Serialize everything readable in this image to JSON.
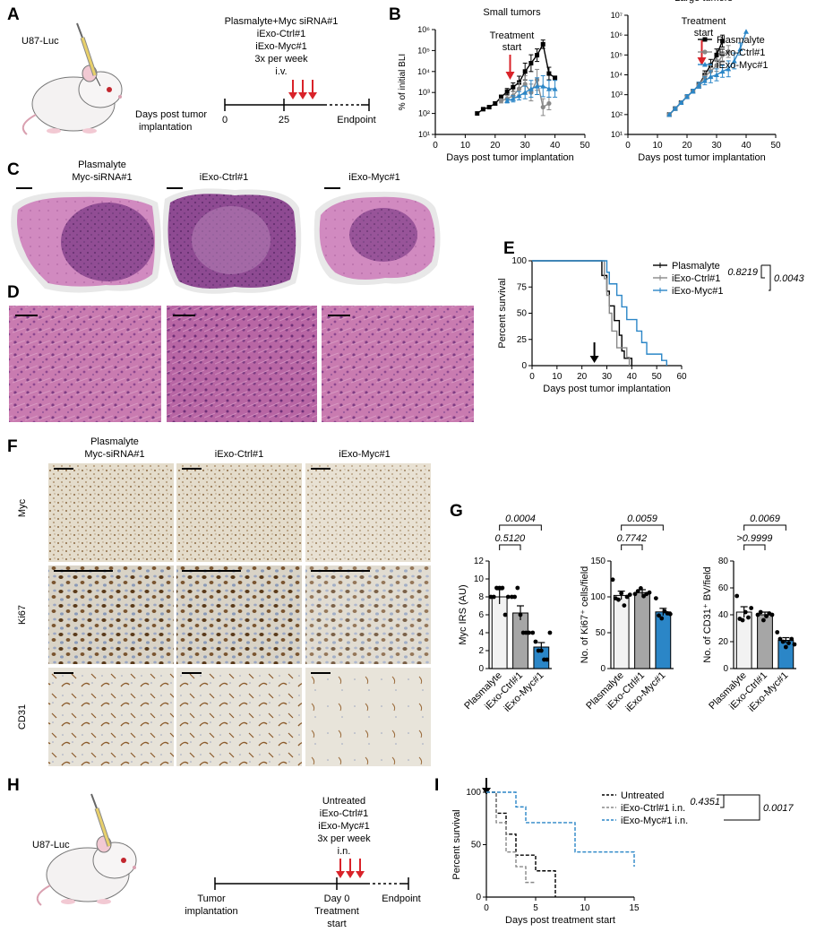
{
  "colors": {
    "plasmalyte": "#000000",
    "ctrl": "#888888",
    "myc": "#2b86c7",
    "arrow_red": "#d9232a",
    "he_pink": "#c46aa6",
    "he_purple": "#8a3f87",
    "ihc_bg": "#e9e4d8",
    "ihc_brown": "#6e4a22",
    "bar_plasmalyte": "#f2f2f2",
    "bar_ctrl": "#a6a6a6",
    "bar_myc": "#2b86c7"
  },
  "panels": {
    "A": {
      "letter": "A",
      "cell_line": "U87-Luc",
      "treatment_lines": [
        "Plasmalyte+Myc siRNA#1",
        "iExo-Ctrl#1",
        "iExo-Myc#1",
        "3x per week",
        "i.v."
      ],
      "timeline_label_1": "Days post tumor",
      "timeline_label_2": "implantation",
      "ticks": [
        "0",
        "25",
        "Endpoint"
      ]
    },
    "B": {
      "letter": "B"
    },
    "C": {
      "letter": "C",
      "group_titles": [
        [
          "Plasmalyte",
          "Myc-siRNA#1"
        ],
        [
          "iExo-Ctrl#1"
        ],
        [
          "iExo-Myc#1"
        ]
      ]
    },
    "D": {
      "letter": "D"
    },
    "E": {
      "letter": "E"
    },
    "F": {
      "letter": "F",
      "group_titles": [
        [
          "Plasmalyte",
          "Myc-siRNA#1"
        ],
        [
          "iExo-Ctrl#1"
        ],
        [
          "iExo-Myc#1"
        ]
      ],
      "row_labels": [
        "Myc",
        "Ki67",
        "CD31"
      ]
    },
    "G": {
      "letter": "G"
    },
    "H": {
      "letter": "H",
      "cell_line": "U87-Luc",
      "treatment_lines": [
        "Untreated",
        "iExo-Ctrl#1",
        "iExo-Myc#1",
        "3x per week",
        "i.n."
      ],
      "left_label": [
        "Tumor",
        "implantation"
      ],
      "mid_label": [
        "Day 0",
        "Treatment",
        "start"
      ],
      "end_label": "Endpoint"
    },
    "I": {
      "letter": "I"
    }
  },
  "chart_data": [
    {
      "id": "B-small",
      "type": "line",
      "title": "Small tumors",
      "annotation": [
        "Treatment",
        "start"
      ],
      "xlabel": "Days post tumor implantation",
      "ylabel": "% of initial BLI",
      "xlim": [
        0,
        50
      ],
      "xticks": [
        0,
        10,
        20,
        30,
        40,
        50
      ],
      "ylog": true,
      "ylim_exp": [
        1,
        6
      ],
      "ytick_labels": [
        "10¹",
        "10²",
        "10³",
        "10⁴",
        "10⁵",
        "10⁶"
      ],
      "arrow_x": 25,
      "series": [
        {
          "key": "plasmalyte",
          "x": [
            14,
            16,
            18,
            20,
            22,
            24,
            26,
            28,
            30,
            32,
            34,
            36,
            38,
            40
          ],
          "y": [
            100,
            160,
            200,
            300,
            600,
            1100,
            1800,
            3000,
            10000,
            25000,
            60000,
            200000,
            8000,
            5000
          ],
          "err": [
            0,
            0.05,
            0.05,
            0.08,
            0.1,
            0.15,
            0.2,
            0.3,
            0.4,
            0.4,
            0.3,
            0.2,
            0.3,
            0.0
          ]
        },
        {
          "key": "ctrl",
          "x": [
            22,
            24,
            26,
            28,
            30,
            32,
            34,
            36,
            38
          ],
          "y": [
            400,
            500,
            700,
            1500,
            2500,
            1000,
            4000,
            200,
            300
          ],
          "err": [
            0.1,
            0.15,
            0.2,
            0.3,
            0.4,
            0.4,
            0.5,
            0.4,
            0.3
          ]
        },
        {
          "key": "myc",
          "x": [
            24,
            26,
            28,
            30,
            32,
            34,
            36,
            38,
            40
          ],
          "y": [
            400,
            500,
            700,
            1000,
            1500,
            2000,
            2000,
            1500,
            1500
          ],
          "err": [
            0.1,
            0.15,
            0.2,
            0.3,
            0.4,
            0.4,
            0.5,
            0.4,
            0.4
          ]
        }
      ]
    },
    {
      "id": "B-large",
      "type": "line",
      "title": "Large tumors",
      "annotation": [
        "Treatment",
        "start"
      ],
      "xlabel": "Days post tumor implantation",
      "xlim": [
        0,
        50
      ],
      "xticks": [
        0,
        10,
        20,
        30,
        40,
        50
      ],
      "ylog": true,
      "ylim_exp": [
        1,
        7
      ],
      "ytick_labels": [
        "10¹",
        "10²",
        "10³",
        "10⁴",
        "10⁵",
        "10⁶",
        "10⁷"
      ],
      "arrow_x": 25,
      "legend": [
        "Plasmalyte",
        "iExo-Ctrl#1",
        "iExo-Myc#1"
      ],
      "series": [
        {
          "key": "plasmalyte",
          "x": [
            14,
            16,
            18,
            20,
            22,
            24,
            26,
            28,
            30,
            32
          ],
          "y": [
            100,
            200,
            400,
            800,
            1500,
            3000,
            10000,
            30000,
            100000,
            500000
          ],
          "err": [
            0,
            0.05,
            0.05,
            0.1,
            0.1,
            0.15,
            0.2,
            0.3,
            0.3,
            0.3
          ]
        },
        {
          "key": "ctrl",
          "x": [
            14,
            16,
            18,
            20,
            22,
            24,
            26,
            28,
            30,
            32,
            34
          ],
          "y": [
            100,
            200,
            400,
            800,
            1500,
            3000,
            8000,
            15000,
            30000,
            100000,
            150000
          ],
          "err": [
            0,
            0.05,
            0.05,
            0.1,
            0.1,
            0.15,
            0.2,
            0.3,
            0.3,
            0.3,
            0.3
          ]
        },
        {
          "key": "myc",
          "x": [
            14,
            16,
            18,
            20,
            22,
            24,
            26,
            28,
            30,
            32,
            34,
            36,
            38,
            40
          ],
          "y": [
            100,
            200,
            400,
            800,
            1500,
            3000,
            5000,
            8000,
            10000,
            15000,
            20000,
            50000,
            200000,
            1500000
          ],
          "err": [
            0,
            0.05,
            0.05,
            0.1,
            0.1,
            0.15,
            0.2,
            0.3,
            0.3,
            0.3,
            0.4,
            0.4,
            0.3,
            0
          ]
        }
      ]
    },
    {
      "id": "E",
      "type": "line",
      "xlabel": "Days post tumor implantation",
      "ylabel": "Percent survival",
      "xlim": [
        0,
        60
      ],
      "ylim": [
        0,
        100
      ],
      "xticks": [
        0,
        10,
        20,
        30,
        40,
        50,
        60
      ],
      "yticks": [
        0,
        25,
        50,
        75,
        100
      ],
      "arrow_x": 25,
      "legend": [
        "Plasmalyte",
        "iExo-Ctrl#1",
        "iExo-Myc#1"
      ],
      "pvalues": [
        "0.8219",
        "0.0043"
      ],
      "series": [
        {
          "key": "plasmalyte",
          "x": [
            0,
            28,
            28,
            30,
            30,
            31,
            31,
            33,
            33,
            35,
            35,
            36,
            36,
            37,
            37,
            40,
            40
          ],
          "y": [
            100,
            100,
            86,
            86,
            71,
            71,
            57,
            57,
            43,
            43,
            29,
            29,
            14,
            14,
            7,
            7,
            0
          ]
        },
        {
          "key": "ctrl",
          "x": [
            0,
            29,
            29,
            30,
            30,
            31,
            31,
            32,
            32,
            34,
            34,
            38,
            38,
            39,
            39
          ],
          "y": [
            100,
            100,
            83,
            83,
            67,
            67,
            50,
            50,
            33,
            33,
            17,
            17,
            8,
            8,
            0
          ]
        },
        {
          "key": "myc",
          "x": [
            0,
            30,
            30,
            31,
            31,
            34,
            34,
            36,
            36,
            38,
            38,
            42,
            42,
            44,
            44,
            46,
            46,
            52,
            52,
            54,
            54
          ],
          "y": [
            100,
            100,
            89,
            89,
            78,
            78,
            67,
            67,
            56,
            56,
            44,
            44,
            33,
            33,
            22,
            22,
            11,
            11,
            5,
            5,
            0
          ]
        }
      ]
    },
    {
      "id": "G1",
      "type": "bar",
      "categories": [
        "Plasmalyte",
        "iExo-Ctrl#1",
        "iExo-Myc#1"
      ],
      "ylabel": "Myc IRS (AU)",
      "ylim": [
        0,
        12
      ],
      "yticks": [
        0,
        2,
        4,
        6,
        8,
        10,
        12
      ],
      "values": [
        8.0,
        6.2,
        2.4
      ],
      "errors": [
        0.8,
        0.8,
        0.5
      ],
      "points": [
        [
          8,
          8,
          9,
          9,
          9,
          6,
          8
        ],
        [
          8,
          8,
          9,
          6,
          4,
          4,
          4
        ],
        [
          4,
          3,
          2,
          2,
          1,
          1,
          4
        ]
      ],
      "pvalues": [
        "0.5120",
        "0.0004"
      ]
    },
    {
      "id": "G2",
      "type": "bar",
      "categories": [
        "Plasmalyte",
        "iExo-Ctrl#1",
        "iExo-Myc#1"
      ],
      "ylabel": "No. of Ki67⁺ cells/field",
      "ylim": [
        0,
        150
      ],
      "yticks": [
        0,
        50,
        100,
        150
      ],
      "values": [
        102,
        106,
        79
      ],
      "errors": [
        6,
        4,
        5
      ],
      "points": [
        [
          124,
          98,
          96,
          105,
          88,
          100,
          103
        ],
        [
          104,
          108,
          112,
          101,
          104,
          106
        ],
        [
          98,
          74,
          70,
          80,
          77,
          76
        ]
      ],
      "pvalues": [
        "0.7742",
        "0.0059"
      ]
    },
    {
      "id": "G3",
      "type": "bar",
      "categories": [
        "Plasmalyte",
        "iExo-Ctrl#1",
        "iExo-Myc#1"
      ],
      "ylabel": "No. of CD31⁺ BV/field",
      "ylim": [
        0,
        80
      ],
      "yticks": [
        0,
        20,
        40,
        60,
        80
      ],
      "values": [
        42,
        40,
        21
      ],
      "errors": [
        4,
        2,
        2
      ],
      "points": [
        [
          54,
          37,
          36,
          42,
          38,
          45
        ],
        [
          40,
          42,
          36,
          39,
          41,
          40
        ],
        [
          27,
          22,
          20,
          16,
          19,
          22,
          18
        ]
      ],
      "pvalues": [
        ">0.9999",
        "0.0069"
      ]
    },
    {
      "id": "I",
      "type": "line",
      "xlabel": "Days post treatment start",
      "ylabel": "Percent survival",
      "xlim": [
        0,
        15
      ],
      "ylim": [
        0,
        100
      ],
      "xticks": [
        0,
        5,
        10,
        15
      ],
      "yticks": [
        0,
        50,
        100
      ],
      "arrow_x": 0,
      "legend": [
        "Untreated",
        "iExo-Ctrl#1 i.n.",
        "iExo-Myc#1 i.n."
      ],
      "pvalues": [
        "0.4351",
        "0.0017"
      ],
      "series": [
        {
          "key": "untreated",
          "x": [
            0,
            1,
            1,
            2,
            2,
            3,
            3,
            5,
            5,
            7,
            7
          ],
          "y": [
            100,
            100,
            80,
            80,
            60,
            60,
            40,
            40,
            25,
            25,
            0
          ]
        },
        {
          "key": "ctrl",
          "x": [
            0,
            1,
            1,
            2,
            2,
            3,
            3,
            4,
            4,
            5,
            5
          ],
          "y": [
            100,
            100,
            71,
            71,
            43,
            43,
            29,
            29,
            14,
            14,
            14
          ]
        },
        {
          "key": "myc",
          "x": [
            0,
            3,
            3,
            4,
            4,
            5,
            5,
            9,
            9,
            15,
            15
          ],
          "y": [
            100,
            100,
            86,
            86,
            71,
            71,
            71,
            71,
            43,
            43,
            29
          ]
        }
      ]
    }
  ]
}
